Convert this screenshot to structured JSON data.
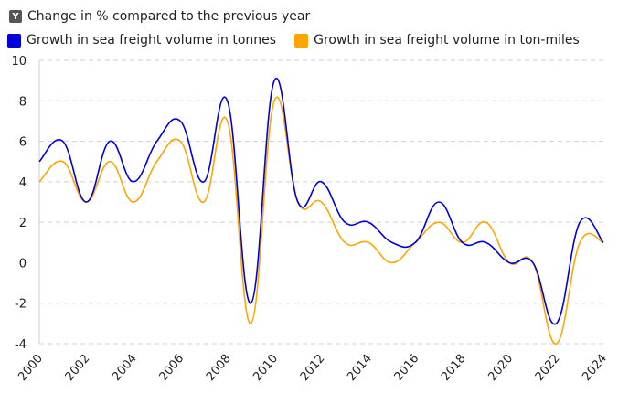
{
  "chart_data": {
    "type": "line",
    "title": "",
    "ylabel": "Change in % compared to the previous year",
    "xlabel": "",
    "x": [
      2000,
      2001,
      2002,
      2003,
      2004,
      2005,
      2006,
      2007,
      2008,
      2009,
      2010,
      2011,
      2012,
      2013,
      2014,
      2015,
      2016,
      2017,
      2018,
      2019,
      2020,
      2021,
      2022,
      2023,
      2024
    ],
    "xticks": [
      "2000",
      "2002",
      "2004",
      "2006",
      "2008",
      "2010",
      "2012",
      "2014",
      "2016",
      "2018",
      "2020",
      "2022",
      "2024"
    ],
    "yticks": [
      "10",
      "8",
      "6",
      "4",
      "2",
      "0",
      "-2",
      "-4"
    ],
    "ylim": [
      -4,
      10
    ],
    "grid": true,
    "legend_position": "top-left",
    "series": [
      {
        "name": "Growth in sea freight volume in tonnes",
        "color": "#0000dd",
        "values": [
          5,
          6,
          3,
          6,
          4,
          6,
          7,
          4,
          8,
          -2,
          9,
          3,
          4,
          2,
          2,
          1,
          1,
          3,
          1,
          1,
          0,
          0,
          -3,
          2,
          1
        ]
      },
      {
        "name": "Growth in sea freight volume in ton-miles",
        "color": "#ffa500",
        "values": [
          4,
          5,
          3,
          5,
          3,
          5,
          6,
          3,
          7,
          -3,
          8,
          3,
          3,
          1,
          1,
          0,
          1,
          2,
          1,
          2,
          0,
          0,
          -4,
          1,
          1
        ]
      }
    ]
  },
  "y_icon": "Y"
}
